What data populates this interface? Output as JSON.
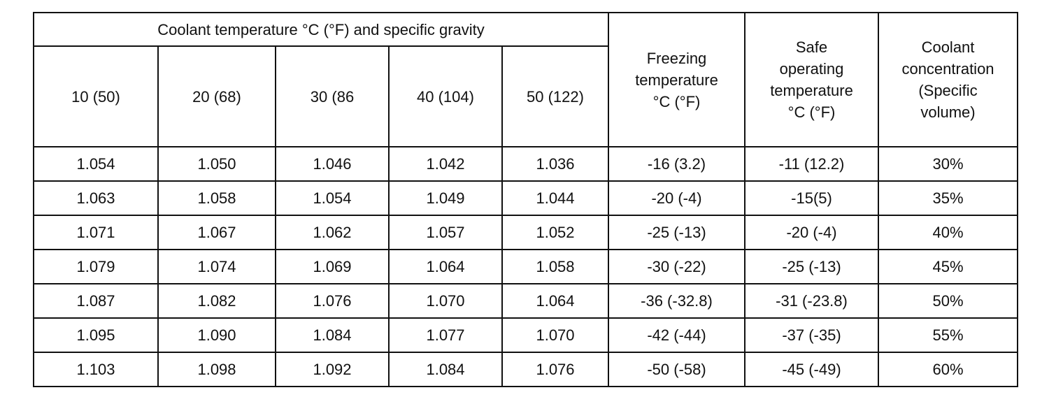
{
  "table": {
    "group_header": "Coolant temperature °C (°F) and specific gravity",
    "temperature_headers": [
      "10 (50)",
      "20 (68)",
      "30 (86",
      "40 (104)",
      "50 (122)"
    ],
    "side_headers": [
      [
        "Freezing",
        "temperature",
        "°C (°F)"
      ],
      [
        "Safe",
        "operating",
        "temperature",
        "°C (°F)"
      ],
      [
        "Coolant",
        "concentration",
        "(Specific",
        "volume)"
      ]
    ],
    "rows": [
      [
        "1.054",
        "1.050",
        "1.046",
        "1.042",
        "1.036",
        "-16 (3.2)",
        "-11 (12.2)",
        "30%"
      ],
      [
        "1.063",
        "1.058",
        "1.054",
        "1.049",
        "1.044",
        "-20 (-4)",
        "-15(5)",
        "35%"
      ],
      [
        "1.071",
        "1.067",
        "1.062",
        "1.057",
        "1.052",
        "-25 (-13)",
        "-20 (-4)",
        "40%"
      ],
      [
        "1.079",
        "1.074",
        "1.069",
        "1.064",
        "1.058",
        "-30 (-22)",
        "-25 (-13)",
        "45%"
      ],
      [
        "1.087",
        "1.082",
        "1.076",
        "1.070",
        "1.064",
        "-36 (-32.8)",
        "-31 (-23.8)",
        "50%"
      ],
      [
        "1.095",
        "1.090",
        "1.084",
        "1.077",
        "1.070",
        "-42 (-44)",
        "-37 (-35)",
        "55%"
      ],
      [
        "1.103",
        "1.098",
        "1.092",
        "1.084",
        "1.076",
        "-50 (-58)",
        "-45 (-49)",
        "60%"
      ]
    ]
  }
}
